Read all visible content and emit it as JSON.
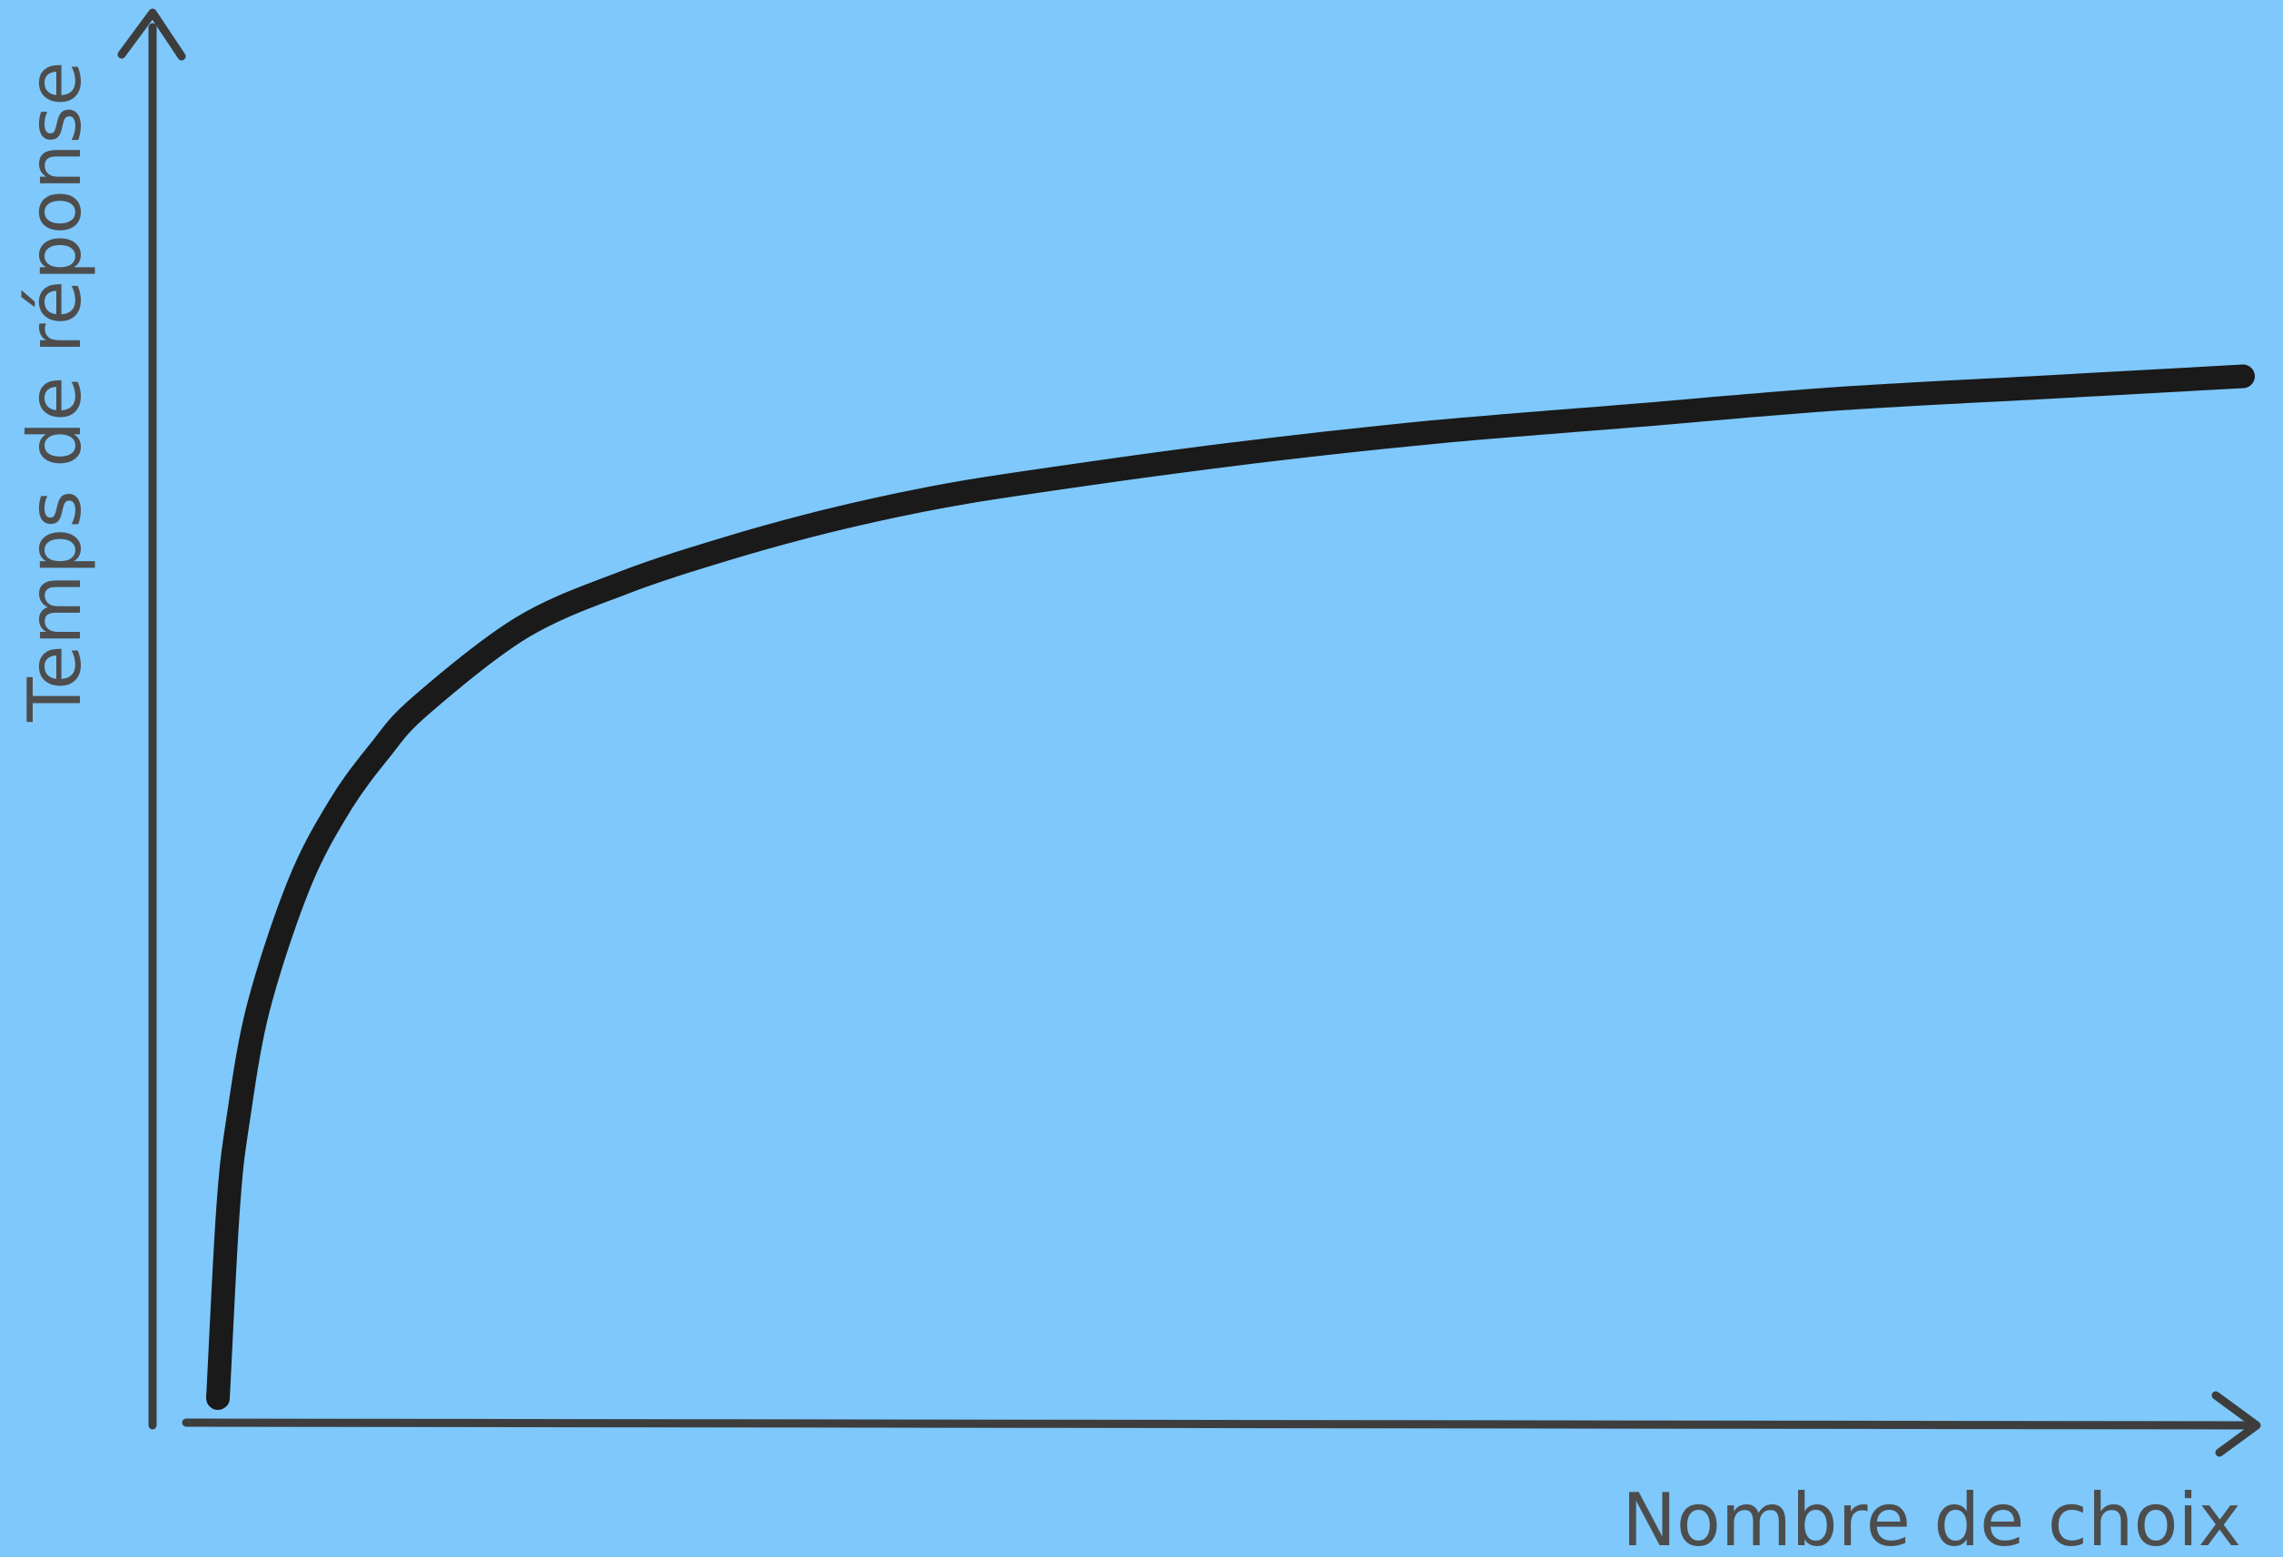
{
  "chart_data": {
    "type": "line",
    "title": "",
    "xlabel": "Nombre de choix",
    "ylabel": "Temps de réponse",
    "grid": false,
    "legend": "none",
    "ticks": "none",
    "xlim": [
      0,
      1
    ],
    "ylim": [
      0,
      1
    ],
    "series": [
      {
        "values_note": "",
        "x": [
          0.0,
          0.005,
          0.01,
          0.02,
          0.04,
          0.06,
          0.08,
          0.1,
          0.15,
          0.2,
          0.25,
          0.3,
          0.35,
          0.4,
          0.5,
          0.6,
          0.7,
          0.8,
          0.9,
          1.0
        ],
        "y": [
          0.0,
          0.17,
          0.25,
          0.35,
          0.46,
          0.53,
          0.58,
          0.62,
          0.69,
          0.73,
          0.76,
          0.785,
          0.805,
          0.82,
          0.845,
          0.865,
          0.88,
          0.895,
          0.905,
          0.915
        ]
      }
    ]
  },
  "colors": {
    "background": "#7ec8fb",
    "axis": "#3d3d3d",
    "curve": "#1a1a1a",
    "label": "#4d4d4d"
  }
}
